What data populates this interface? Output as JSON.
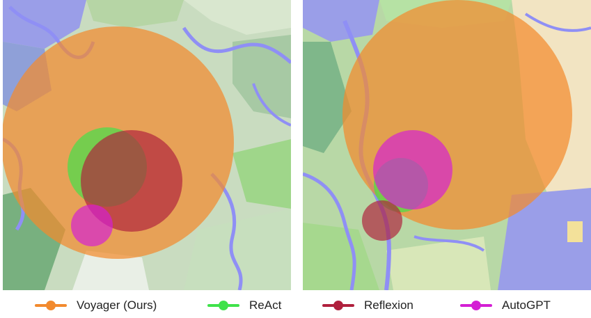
{
  "chart_data": [
    {
      "type": "bubble-map",
      "panel": "left",
      "series": [
        {
          "name": "Voyager (Ours)",
          "center": [
            165,
            205
          ],
          "radius": 167
        },
        {
          "name": "ReAct",
          "center": [
            150,
            240
          ],
          "radius": 57
        },
        {
          "name": "Reflexion",
          "center": [
            185,
            260
          ],
          "radius": 73
        },
        {
          "name": "AutoGPT",
          "center": [
            128,
            324
          ],
          "radius": 30
        }
      ]
    },
    {
      "type": "bubble-map",
      "panel": "right",
      "series": [
        {
          "name": "Voyager (Ours)",
          "center": [
            222,
            165
          ],
          "radius": 165
        },
        {
          "name": "ReAct",
          "center": [
            141,
            266
          ],
          "radius": 39
        },
        {
          "name": "Reflexion",
          "center": [
            114,
            317
          ],
          "radius": 29
        },
        {
          "name": "AutoGPT",
          "center": [
            158,
            244
          ],
          "radius": 57
        }
      ]
    }
  ],
  "legend": [
    {
      "label": "Voyager (Ours)",
      "color": "#f28a2e"
    },
    {
      "label": "ReAct",
      "color": "#3fe24a"
    },
    {
      "label": "Reflexion",
      "color": "#b0203d"
    },
    {
      "label": "AutoGPT",
      "color": "#d41fd4"
    }
  ],
  "colors": {
    "Voyager (Ours)": "#f28a2e",
    "ReAct": "#3fe24a",
    "Reflexion": "#b0203d",
    "AutoGPT": "#d41fd4",
    "water": "#8f8ff5",
    "grass": "#9fd68a",
    "forest": "#6fae7a",
    "plains": "#c9dcc0",
    "sand": "#f2e4c2"
  }
}
